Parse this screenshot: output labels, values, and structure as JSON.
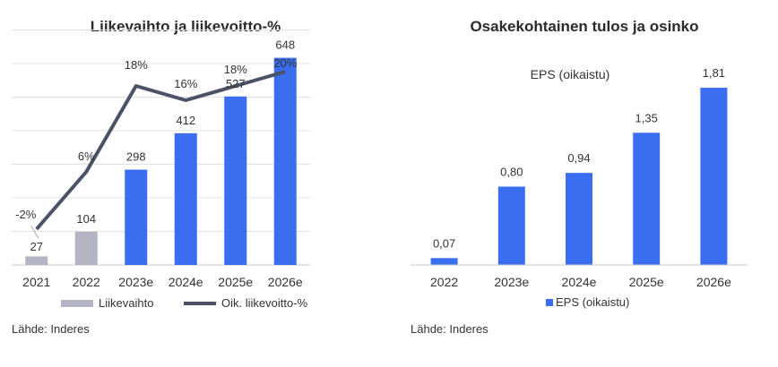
{
  "chart_data": [
    {
      "type": "bar+line",
      "title": "Liikevaihto ja liikevoitto-%",
      "categories": [
        "2021",
        "2022",
        "2023e",
        "2024e",
        "2025e",
        "2026e"
      ],
      "series": [
        {
          "name": "Liikevaihto",
          "kind": "bar",
          "values": [
            27,
            104,
            298,
            412,
            527,
            648
          ],
          "labels": [
            "27",
            "104",
            "298",
            "412",
            "527",
            "648"
          ],
          "colors": [
            "#b4b4c4",
            "#b4b4c4",
            "#3a6df0",
            "#3a6df0",
            "#3a6df0",
            "#3a6df0"
          ]
        },
        {
          "name": "Oik. liikevoitto-%",
          "kind": "line",
          "values": [
            -2,
            6,
            18,
            16,
            18,
            20
          ],
          "labels": [
            "-2%",
            "6%",
            "18%",
            "16%",
            "18%",
            "20%"
          ],
          "color": "#4a5266"
        }
      ],
      "ylim_bar": [
        0,
        700
      ],
      "ylim_line": [
        -4,
        20
      ],
      "grid": true,
      "legend": "bottom",
      "source": "Lähde: Inderes"
    },
    {
      "type": "bar",
      "title": "Osakekohtainen tulos ja osinko",
      "subtitle": "EPS (oikaistu)",
      "categories": [
        "2022",
        "2023e",
        "2024e",
        "2025e",
        "2026e"
      ],
      "series": [
        {
          "name": "EPS (oikaistu)",
          "values": [
            0.07,
            0.8,
            0.94,
            1.35,
            1.81
          ],
          "labels": [
            "0,07",
            "0,80",
            "0,94",
            "1,35",
            "1,81"
          ],
          "color": "#3a6df0"
        }
      ],
      "ylim": [
        0,
        1.81
      ],
      "grid": false,
      "legend": "bottom",
      "source": "Lähde: Inderes"
    }
  ]
}
